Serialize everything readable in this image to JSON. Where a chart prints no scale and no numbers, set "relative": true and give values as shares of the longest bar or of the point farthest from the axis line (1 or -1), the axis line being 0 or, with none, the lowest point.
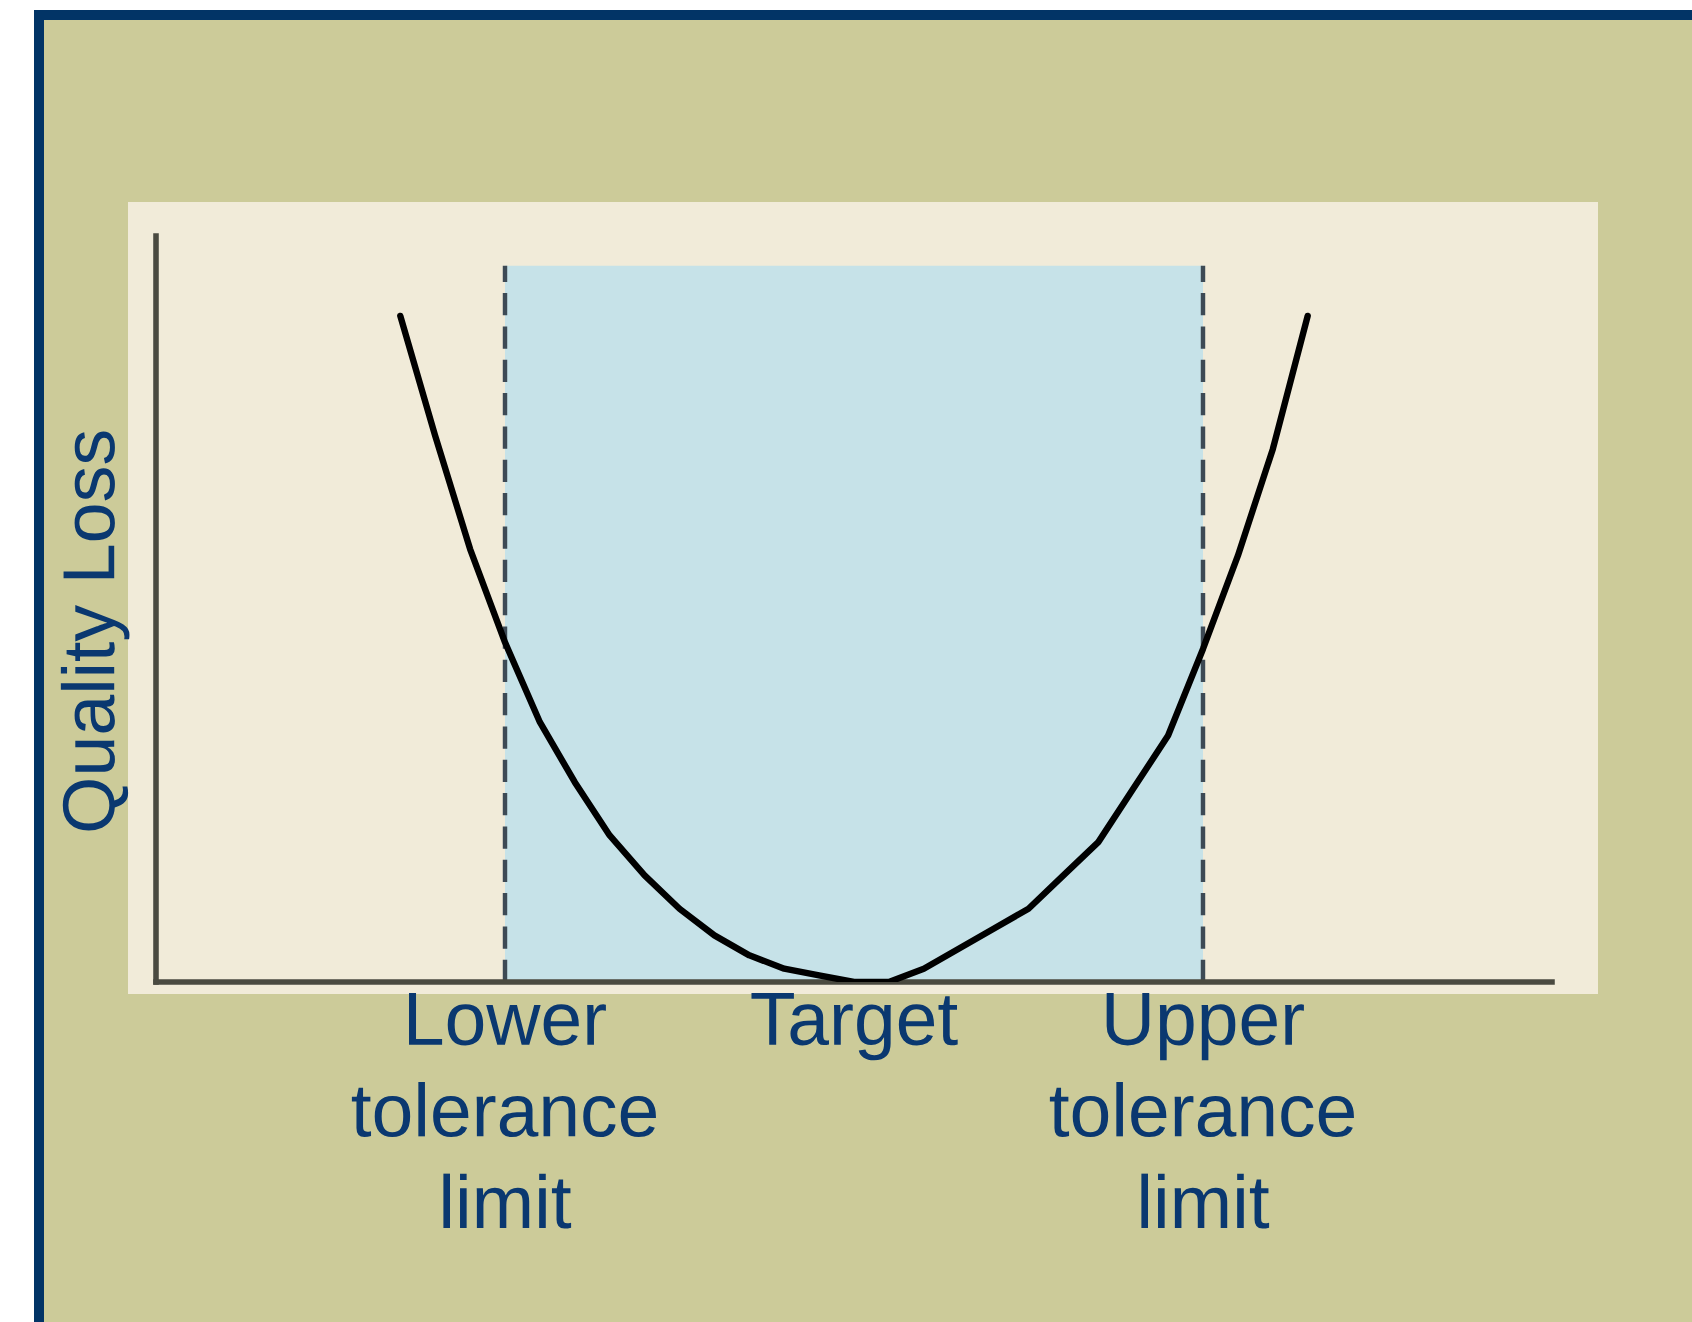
{
  "chart_data": {
    "type": "line",
    "relative": true,
    "ylabel": "Quality Loss",
    "categories": [
      null,
      null,
      null,
      null,
      null,
      null,
      null,
      null,
      null,
      null,
      "Lower\ntolerance\nlimit",
      null,
      null,
      null,
      null,
      null,
      null,
      null,
      null,
      null,
      "Target",
      null,
      null,
      null,
      null,
      null,
      null,
      null,
      null,
      null,
      "Upper\ntolerance\nlimit",
      null,
      null,
      null,
      null,
      null,
      null,
      null,
      null,
      null,
      null
    ],
    "tick_labels": "x",
    "series": [
      {
        "color": "#000000",
        "values": [
          null,
          null,
          null,
          null,
          null,
          null,
          null,
          1.0,
          0.82,
          0.65,
          0.51,
          0.39,
          0.3,
          0.22,
          0.16,
          0.11,
          0.07,
          0.04,
          0.02,
          0.01,
          0.0,
          0.0,
          0.02,
          0.05,
          0.08,
          0.11,
          0.16,
          0.21,
          0.29,
          0.37,
          0.5,
          0.64,
          0.8,
          1.0,
          null,
          null,
          null,
          null,
          null,
          null,
          null
        ]
      }
    ],
    "ref_lines": [
      {
        "axis": "x",
        "value": "Lower\ntolerance\nlimit",
        "color": "#3d4a55",
        "line_style": "dashed"
      },
      {
        "axis": "x",
        "value": "Upper\ntolerance\nlimit",
        "color": "#3d4a55",
        "line_style": "dashed"
      }
    ],
    "bands": [
      {
        "axis": "x",
        "from": "Lower\ntolerance\nlimit",
        "to": "Upper\ntolerance\nlimit",
        "color": "#c6e2e8"
      }
    ]
  }
}
